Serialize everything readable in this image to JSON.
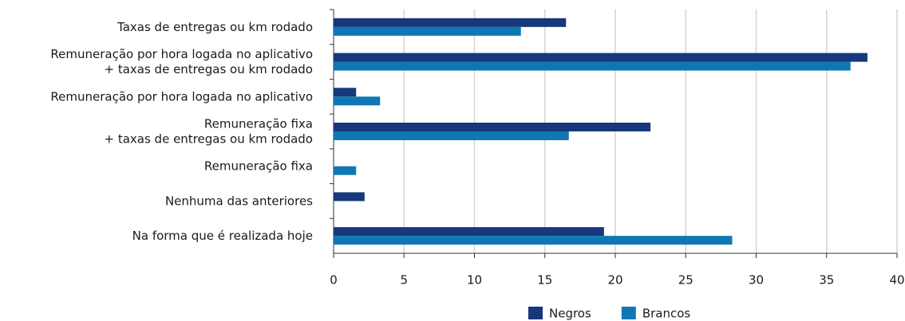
{
  "chart_data": {
    "type": "bar",
    "orientation": "horizontal",
    "categories": [
      "Taxas de entregas ou km rodado",
      "Remuneração por hora logada no aplicativo\n+ taxas de entregas ou km rodado",
      "Remuneração por hora logada no aplicativo",
      "Remuneração fixa\n+ taxas de entregas ou km rodado",
      "Remuneração fixa",
      "Nenhuma das anteriores",
      "Na forma que é realizada hoje"
    ],
    "series": [
      {
        "name": "Negros",
        "color": "#17387a",
        "values": [
          16.5,
          37.9,
          1.6,
          22.5,
          0,
          2.2,
          19.2
        ]
      },
      {
        "name": "Brancos",
        "color": "#0f78b4",
        "values": [
          13.3,
          36.7,
          3.3,
          16.7,
          1.6,
          0,
          28.3
        ]
      }
    ],
    "xlim": [
      0,
      40
    ],
    "xticks": [
      0,
      5,
      10,
      15,
      20,
      25,
      30,
      35,
      40
    ],
    "grid": true,
    "legend": "bottom"
  }
}
